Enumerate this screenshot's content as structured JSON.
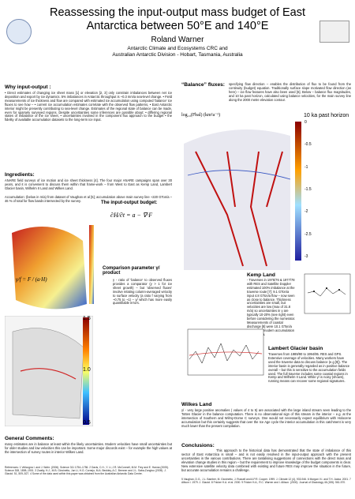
{
  "header": {
    "title": "Reassessing the input-output mass budget of East Antarctica between 50°E and 140°E",
    "author": "Roland Warner",
    "affiliation_1": "Antarctic Climate and Ecosystems CRC and",
    "affiliation_2": "Australian Antarctic Division - Hobart, Tasmania, Australia"
  },
  "left": {
    "why_heading": "Why input-output :",
    "why_text": "• Direct estimates of changing ice sheet mass [1] or elevation [2, 3] only constrain imbalances between net ice deposition and export by ice dynamics. 5% imbalances in Antarctic throughput is ~0.3 mm/a sea-level change. • Field measurements of ice thickness and flow are compared with estimated ice accumulation using computed 'balance' ice fluxes to see how – • current ice accumulation estimates correlate with the observed flow patterns, • East Antarctic interior might be presently contributing to sea-level change. Estimates of the regional state of balance can be made, even for sparsely surveyed regions. Despite uncertainties some inferences are possible about: • differing regional states of imbalance of the ice sheet, • uncertainties involved in the component flux approach to the budget • the fidelity of available accumulation datasets to the long-term ice input.",
    "ingredients_heading": "Ingredients:",
    "ingredients_text": "ANARE field surveys of ice motion and ice sheet thickness [4]. The four major ANARE campaigns span over 30 years, and it is convenient to discuss them within that frame-work – from West to East as Kemp Land, Lambert Glacier basin, Wilhelm II Land and Wilkes Land.",
    "accumulation_text": "Accumulation: (below in m/a) from dataset of Vaughan et al [5]; accumulation above main survey line ~220 GTon/a – 46 % of total for flow bands intersected by the survey.",
    "budget_heading": "The input-output budget:",
    "comparison_heading": "Comparison parameter γ/ product",
    "comparison_text": "γ - ratio of 'balance' to observed fluxes provides a comparator (γ > 1 for ice sheet growth) – but 'observed fluxes' involve relating column-averaged velocity to surface velocity (a ratio f varying from ~0.75 to ~1) – γ/ which has more easily quantifiable errors.",
    "colorbar_ticks": [
      "1.5",
      "1.0",
      "0.5"
    ],
    "general_heading": "General Comments:",
    "general_text": "many estimates are in balance at least within the likely uncertainties. Modern velocities have small uncertainties but for older studies and low velocities this can be important. Some major discords exist – for example the high values at the intersection of survey routes in interior Wilkes Land.",
    "references": "References: 1 Velicogna I. and J. Wahr. (2006). Science 311 1754–1756. 2 Davis, C.H., Y. Li, J.R. McConnell, M.M. Frey and E. Hanna (2005). Science 308, 1898–1901. 3 Zwally, H.J., M.B. Giovinetto, Jun Li, H.G. Cornejo, M.A. Beckley, A.C. Brenner and J.L. Saba-Zongtou (2005). J. Glaciol. 51, 509–527. 4 Some of the data used within this paper was obtained from the Australian Antarctic Data Centre."
  },
  "right": {
    "balance_heading": "“Balance” fluxes:",
    "balance_text": "specifying flow direction – enables the distribution of flux to be found from the continuity (budget) equation. Traditionally surface slope motivated flow direction (as here) – ice flow features have also been used [6]. Below – balance flux magnitudes, and 10 ka past horizon, calculated using balance velocities, for the main survey line along the 2000 metre elevation contour.",
    "formula_label": "log₁₀(Fbal) (km²a⁻¹)",
    "horizon_label": "10 ka past horizon",
    "colorbar_ticks": [
      "0",
      "-0.5",
      "-1",
      "-1.5",
      "-2",
      "-2.5",
      "-3"
    ],
    "kemp_heading": "Kemp Land",
    "kemp_text": "- Traverses in 1975/76 & 1977/78 with RES and Satellite Doppler estimated 100% imbalance at the traverse route [7]: 9.1 GTon/a input 4.8 GTon/a flow – now seen as close to balance. Thickness uncertainties are small, but velocities are low (max of 31.8 m/a) so uncertainties in γ are typically 10-20% (see right) even before considering the numerator. Measurements of coastal discharge [8] were 10.1 GTon/a input using modern accumulation 15.9 GTon/a.",
    "lambert_heading": "Lambert Glacier basin",
    "lambert_text": "Traverses from 1989/90 to 1994/95. RES and GPS. Extensive coverage of velocities. Many workers have used the traverse data to discuss balance (e.g [9]). The interior basin is generally regarded as in positive balance overall – but this is sensitive to the accumulation fields used. The full traverse includes some coastal regions in Kemp and Wilhelm II Land. While γ/ is noisy (shown), running means can recover some regional signatures.",
    "wilkes_heading": "Wilkes Land",
    "wilkes_text": "γ/ - very large positive anomalies ( values of 4 to 5) are associated with the large inland stream seen leading to the Totten Glacier in the balance computation. There is no observational sign of this stream in the interior – e.g. at the intersection of Southern and Wilmy-Dome C surveys. One would not necessarily expect equilibrium with Holocene accumulation but this certainly suggests that over the Ice Age cycle the interior accumulation in this catchment is very much lower than the present compilation.",
    "conclusions_heading": "Conclusions:",
    "conclusions_text": "This approach to the historical data has demonstrated that the state of imbalance of this sector of East Antarctica is small – and is not easily resolved in the input-output approach with the present uncertainties in the various contributions. There are tantalising suggestions of connections with the direct mass and elevation change studies in this region – but the requirement to improve knowledge of the budget components is clear. New extensive satellite velocity data combined with existing and future RES may improve the situation in the future, but accurate accumulation remains a challenge.",
    "references": "5 Vaughan, D.G., J.L. Bamber, M. Giovinetto, J. Russell and A.P.R. Cooper. 1999. J. Climate 12 (4), 933-946. 6 Morgan V.I. and T.H. Jacka. 2001. 7 Allison I. 1979. J. Glaciol. 8 Fricker H.A. et al. 2000. 9 Fricker H.A., R.C. Warner and I. Allison. (2000). Journal of Glaciology 46 (155): 561-570."
  }
}
